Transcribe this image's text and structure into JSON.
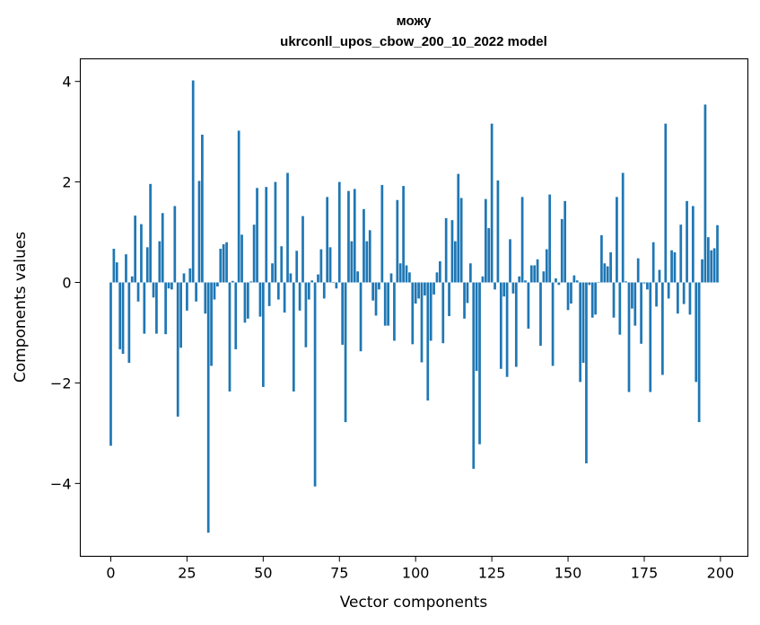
{
  "chart_data": {
    "type": "bar",
    "title": "можу",
    "subtitle": "ukrconll_upos_cbow_200_10_2022 model",
    "xlabel": "Vector components",
    "ylabel": "Components values",
    "xlim": [
      -10,
      209
    ],
    "ylim": [
      -5.45,
      4.45
    ],
    "xticks": [
      0,
      25,
      50,
      75,
      100,
      125,
      150,
      175,
      200
    ],
    "yticks": [
      -4,
      -2,
      0,
      2,
      4
    ],
    "ytick_labels": [
      "−4",
      "−2",
      "0",
      "2",
      "4"
    ],
    "grid": false,
    "bar_color": "#1f77b4",
    "x": [
      0,
      1,
      2,
      3,
      4,
      5,
      6,
      7,
      8,
      9,
      10,
      11,
      12,
      13,
      14,
      15,
      16,
      17,
      18,
      19,
      20,
      21,
      22,
      23,
      24,
      25,
      26,
      27,
      28,
      29,
      30,
      31,
      32,
      33,
      34,
      35,
      36,
      37,
      38,
      39,
      40,
      41,
      42,
      43,
      44,
      45,
      46,
      47,
      48,
      49,
      50,
      51,
      52,
      53,
      54,
      55,
      56,
      57,
      58,
      59,
      60,
      61,
      62,
      63,
      64,
      65,
      66,
      67,
      68,
      69,
      70,
      71,
      72,
      73,
      74,
      75,
      76,
      77,
      78,
      79,
      80,
      81,
      82,
      83,
      84,
      85,
      86,
      87,
      88,
      89,
      90,
      91,
      92,
      93,
      94,
      95,
      96,
      97,
      98,
      99,
      100,
      101,
      102,
      103,
      104,
      105,
      106,
      107,
      108,
      109,
      110,
      111,
      112,
      113,
      114,
      115,
      116,
      117,
      118,
      119,
      120,
      121,
      122,
      123,
      124,
      125,
      126,
      127,
      128,
      129,
      130,
      131,
      132,
      133,
      134,
      135,
      136,
      137,
      138,
      139,
      140,
      141,
      142,
      143,
      144,
      145,
      146,
      147,
      148,
      149,
      150,
      151,
      152,
      153,
      154,
      155,
      156,
      157,
      158,
      159,
      160,
      161,
      162,
      163,
      164,
      165,
      166,
      167,
      168,
      169,
      170,
      171,
      172,
      173,
      174,
      175,
      176,
      177,
      178,
      179,
      180,
      181,
      182,
      183,
      184,
      185,
      186,
      187,
      188,
      189,
      190,
      191,
      192,
      193,
      194,
      195,
      196,
      197,
      198,
      199
    ],
    "values": [
      -3.25,
      0.67,
      0.4,
      -1.33,
      -1.42,
      0.56,
      -1.6,
      0.12,
      1.33,
      -0.38,
      1.16,
      -1.02,
      0.7,
      1.96,
      -0.3,
      -1.02,
      0.82,
      1.38,
      -1.03,
      -0.12,
      -0.14,
      1.52,
      -2.67,
      -1.3,
      0.18,
      -0.56,
      0.28,
      4.02,
      -0.38,
      2.02,
      2.94,
      -0.62,
      -4.98,
      -1.66,
      -0.34,
      -0.08,
      0.67,
      0.76,
      0.8,
      -2.17,
      0.03,
      -1.33,
      3.02,
      0.95,
      -0.8,
      -0.72,
      0.02,
      1.15,
      1.88,
      -0.68,
      -2.08,
      1.9,
      -0.47,
      0.38,
      2.0,
      -0.34,
      0.72,
      -0.6,
      2.18,
      0.18,
      -2.17,
      0.63,
      -0.56,
      1.32,
      -1.29,
      -0.34,
      0.04,
      -4.06,
      0.16,
      0.66,
      -0.32,
      1.7,
      0.7,
      0.01,
      -0.12,
      2.0,
      -1.24,
      -2.78,
      1.82,
      0.82,
      1.86,
      0.22,
      -1.37,
      1.46,
      0.82,
      1.04,
      -0.36,
      -0.66,
      -0.14,
      1.94,
      -0.86,
      -0.86,
      0.18,
      -1.16,
      1.64,
      0.38,
      1.92,
      0.34,
      0.2,
      -1.23,
      -0.42,
      -0.32,
      -1.59,
      -0.26,
      -2.35,
      -1.16,
      -0.24,
      0.2,
      0.42,
      -1.21,
      1.28,
      -0.67,
      1.24,
      0.82,
      2.16,
      1.68,
      -0.72,
      -0.41,
      0.38,
      -3.71,
      -1.76,
      -3.22,
      0.12,
      1.66,
      1.08,
      3.16,
      -0.14,
      2.03,
      -1.72,
      -0.28,
      -1.88,
      0.86,
      -0.22,
      -1.68,
      0.12,
      1.7,
      0.04,
      -0.92,
      0.34,
      0.34,
      0.46,
      -1.26,
      0.22,
      0.66,
      1.75,
      -1.66,
      0.08,
      -0.05,
      1.26,
      1.62,
      -0.55,
      -0.42,
      0.14,
      0.04,
      -1.98,
      -1.6,
      -3.6,
      -0.05,
      -0.7,
      -0.64,
      0.01,
      0.94,
      0.38,
      0.32,
      0.6,
      -0.7,
      1.7,
      -1.04,
      2.18,
      0.02,
      -2.18,
      -0.52,
      -0.86,
      0.48,
      -1.22,
      -0.02,
      -0.14,
      -2.18,
      0.8,
      -0.48,
      0.25,
      -1.84,
      3.16,
      -0.32,
      0.64,
      0.6,
      -0.62,
      1.15,
      -0.43,
      1.62,
      -0.64,
      1.52,
      -1.98,
      -2.78,
      0.46,
      3.54,
      0.9,
      0.64,
      0.68,
      1.14
    ]
  }
}
